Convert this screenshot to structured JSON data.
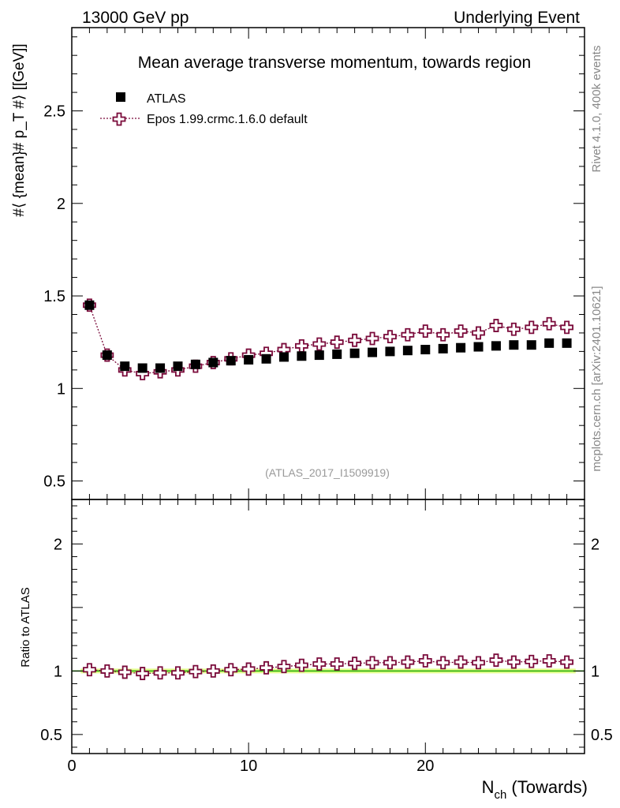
{
  "header": {
    "left": "13000 GeV pp",
    "right": "Underlying Event"
  },
  "side_labels": {
    "rivet": "Rivet 4.1.0,  400k events",
    "mcplots": "mcplots.cern.ch [arXiv:2401.10621]"
  },
  "colors": {
    "data": "#000000",
    "mc": "#7a0a3a",
    "band": "#ccff33",
    "ref_line": "#22aa00"
  },
  "chart_data": [
    {
      "type": "scatter",
      "panel": "main",
      "title": "Mean average transverse momentum, towards region",
      "watermark": "(ATLAS_2017_I1509919)",
      "xlabel": "",
      "ylabel": "#⟨ {mean}# p_T #⟩ [[GeV]]",
      "ylim": [
        0.4,
        2.95
      ],
      "xlim": [
        0,
        29
      ],
      "yticks": [
        0.5,
        1,
        1.5,
        2,
        2.5
      ],
      "ytick_labels": [
        "0.5",
        "1",
        "1.5",
        "2",
        "2.5"
      ],
      "legend": [
        "ATLAS",
        "Epos 1.99.crmc.1.6.0 default"
      ],
      "legend_position": "top-left",
      "x": [
        1,
        2,
        3,
        4,
        5,
        6,
        7,
        8,
        9,
        10,
        11,
        12,
        13,
        14,
        15,
        16,
        17,
        18,
        19,
        20,
        21,
        22,
        23,
        24,
        25,
        26,
        27,
        28
      ],
      "series": [
        {
          "name": "ATLAS",
          "marker": "filled-square",
          "values": [
            1.45,
            1.18,
            1.12,
            1.11,
            1.11,
            1.12,
            1.13,
            1.14,
            1.15,
            1.155,
            1.16,
            1.17,
            1.175,
            1.18,
            1.185,
            1.19,
            1.195,
            1.2,
            1.205,
            1.21,
            1.215,
            1.22,
            1.225,
            1.23,
            1.235,
            1.235,
            1.245,
            1.245
          ]
        },
        {
          "name": "Epos 1.99.crmc.1.6.0 default",
          "marker": "open-cross",
          "values": [
            1.45,
            1.18,
            1.1,
            1.08,
            1.09,
            1.1,
            1.12,
            1.14,
            1.16,
            1.18,
            1.19,
            1.21,
            1.23,
            1.24,
            1.25,
            1.26,
            1.27,
            1.28,
            1.29,
            1.31,
            1.29,
            1.31,
            1.3,
            1.34,
            1.32,
            1.33,
            1.35,
            1.33
          ]
        }
      ]
    },
    {
      "type": "scatter",
      "panel": "ratio",
      "xlabel": "N_ch (Towards)",
      "ylabel": "Ratio to ATLAS",
      "ylim": [
        0.35,
        2.35
      ],
      "xlim": [
        0,
        29
      ],
      "yticks": [
        0.5,
        1,
        2
      ],
      "ytick_labels": [
        "0.5",
        "1",
        "2"
      ],
      "xticks": [
        0,
        10,
        20
      ],
      "xtick_labels": [
        "0",
        "10",
        "20"
      ],
      "x": [
        1,
        2,
        3,
        4,
        5,
        6,
        7,
        8,
        9,
        10,
        11,
        12,
        13,
        14,
        15,
        16,
        17,
        18,
        19,
        20,
        21,
        22,
        23,
        24,
        25,
        26,
        27,
        28
      ],
      "series": [
        {
          "name": "Epos 1.99.crmc.1.6.0 default / ATLAS",
          "marker": "open-cross",
          "values": [
            1.01,
            1.0,
            0.99,
            0.98,
            0.985,
            0.985,
            0.995,
            1.0,
            1.01,
            1.015,
            1.025,
            1.035,
            1.045,
            1.055,
            1.055,
            1.06,
            1.065,
            1.065,
            1.07,
            1.08,
            1.065,
            1.07,
            1.065,
            1.085,
            1.07,
            1.075,
            1.08,
            1.07
          ]
        }
      ]
    }
  ]
}
